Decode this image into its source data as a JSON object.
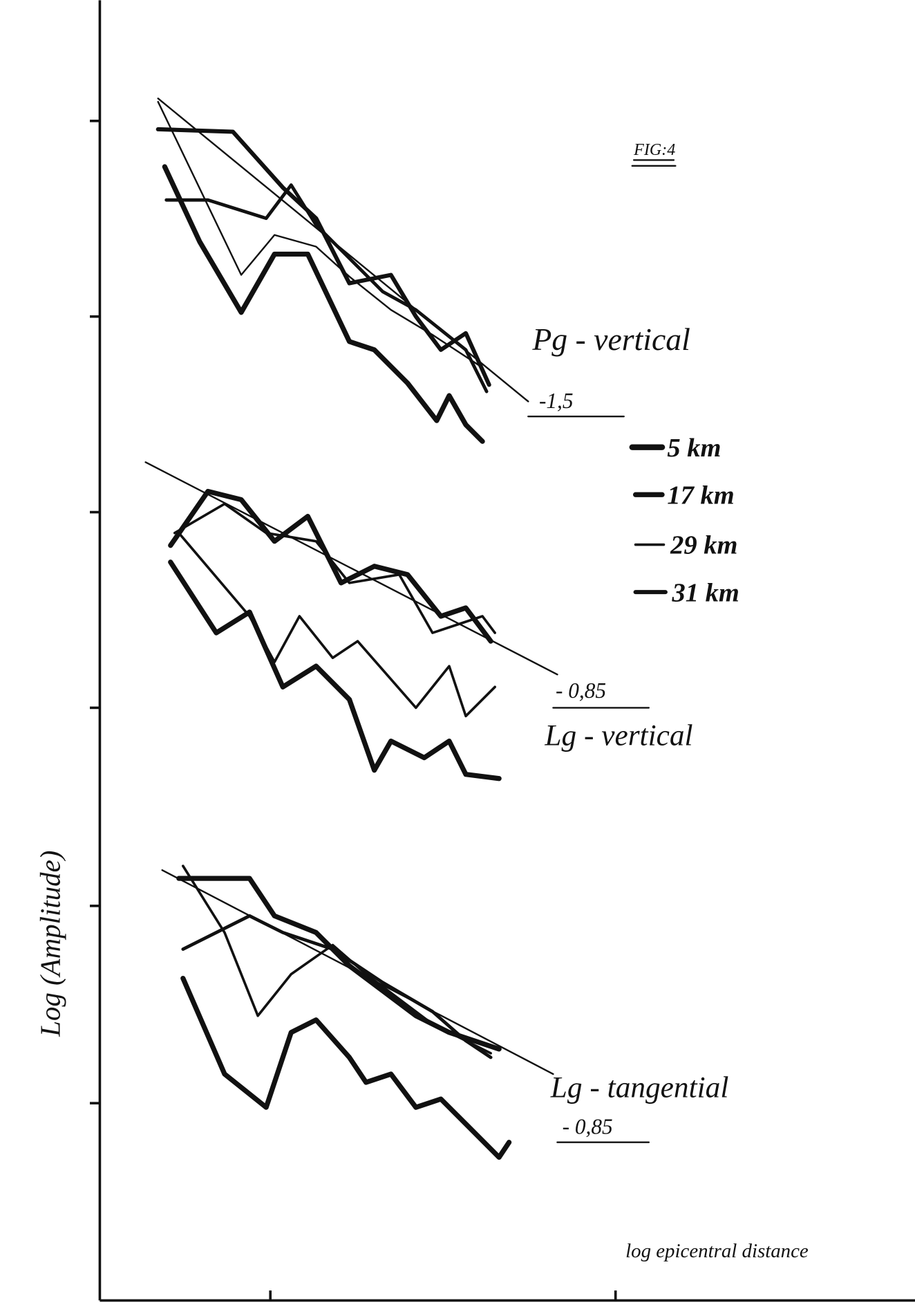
{
  "figure": {
    "label": "FIG:4",
    "y_axis_label": "Log (Amplitude)",
    "x_axis_label": "log epicentral distance",
    "panels": [
      {
        "title": "Pg - vertical",
        "slope": "-1,5"
      },
      {
        "title": "Lg - vertical",
        "slope": "- 0,85"
      },
      {
        "title": "Lg - tangential",
        "slope": "- 0,85"
      }
    ],
    "legend": [
      "5 km",
      "17 km",
      "29 km",
      "31 km"
    ]
  }
}
